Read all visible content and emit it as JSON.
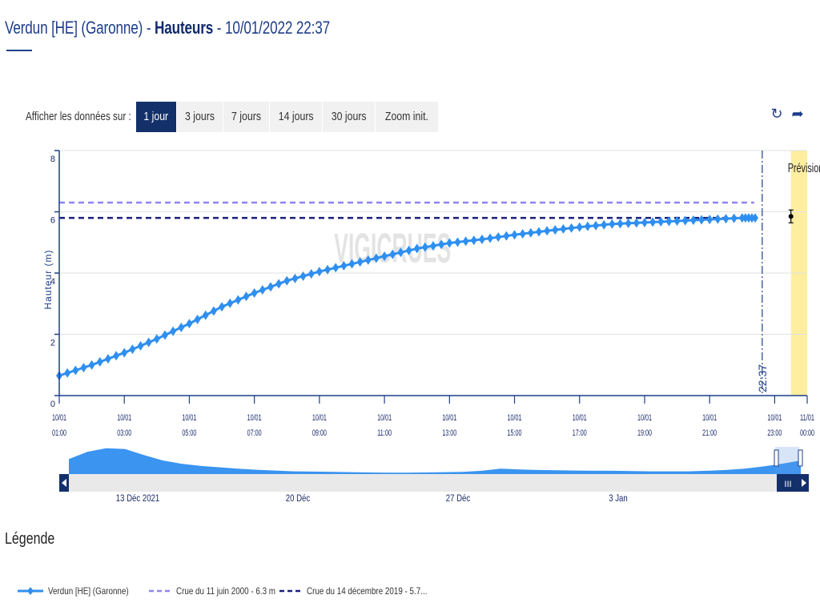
{
  "header": {
    "station": "Verdun [HE] (Garonne)",
    "sep1": " - ",
    "measure": "Hauteurs",
    "sep2": " - ",
    "datetime": "10/01/2022 22:37"
  },
  "toolbar": {
    "label": "Afficher les données sur :",
    "buttons": [
      "1 jour",
      "3 jours",
      "7 jours",
      "14 jours",
      "30 jours",
      "Zoom init."
    ],
    "active_index": 0,
    "icons": [
      "refresh-icon",
      "share-icon"
    ]
  },
  "chart_data": {
    "type": "line",
    "ylabel": "Hauteur (m)",
    "ylim": [
      0,
      8
    ],
    "y_ticks": [
      "0",
      "2",
      "4",
      "6",
      "8"
    ],
    "x_ticks": [
      {
        "date": "10/01",
        "time": "01:00"
      },
      {
        "date": "10/01",
        "time": "03:00"
      },
      {
        "date": "10/01",
        "time": "05:00"
      },
      {
        "date": "10/01",
        "time": "07:00"
      },
      {
        "date": "10/01",
        "time": "09:00"
      },
      {
        "date": "10/01",
        "time": "11:00"
      },
      {
        "date": "10/01",
        "time": "13:00"
      },
      {
        "date": "10/01",
        "time": "15:00"
      },
      {
        "date": "10/01",
        "time": "17:00"
      },
      {
        "date": "10/01",
        "time": "19:00"
      },
      {
        "date": "10/01",
        "time": "21:00"
      },
      {
        "date": "10/01",
        "time": "23:00"
      },
      {
        "date": "11/01",
        "time": "00:00"
      }
    ],
    "xlim_hours": [
      1,
      24
    ],
    "series": [
      {
        "name": "Verdun [HE] (Garonne)",
        "color": "#2f8ff0",
        "x_hours": [
          1,
          2,
          3,
          4,
          5,
          6,
          7,
          8,
          9,
          10,
          11,
          12,
          13,
          14,
          15,
          16,
          17,
          18,
          19,
          20,
          21,
          22,
          22.4
        ],
        "values": [
          0.65,
          1.0,
          1.4,
          1.85,
          2.35,
          2.9,
          3.35,
          3.75,
          4.05,
          4.3,
          4.55,
          4.8,
          4.98,
          5.1,
          5.25,
          5.38,
          5.5,
          5.6,
          5.65,
          5.7,
          5.75,
          5.8,
          5.8
        ]
      }
    ],
    "reference_lines": [
      {
        "name": "Crue du 11 juin 2000 - 6.3 m",
        "value": 6.3,
        "color": "#8c86f0"
      },
      {
        "name": "Crue du 14 décembre 2019 - 5.7...",
        "value": 5.8,
        "color": "#1a1f7a"
      }
    ],
    "now_marker": {
      "label": "22:37",
      "x_hours": 22.617
    },
    "forecast": {
      "label": "Prévisions",
      "from_hours": 23.5,
      "to_hours": 24,
      "point_hours": 23.5,
      "point_value": 5.85,
      "band_color": "#fdeea0"
    },
    "watermark": "VIGICRUES",
    "grid": true,
    "navigator": {
      "labels": [
        "13 Déc 2021",
        "20 Déc",
        "27 Déc",
        "3 Jan"
      ],
      "area_color": "#3a94f0",
      "profile": [
        0.55,
        0.82,
        0.95,
        0.92,
        0.7,
        0.5,
        0.38,
        0.3,
        0.25,
        0.2,
        0.16,
        0.13,
        0.1,
        0.09,
        0.08,
        0.07,
        0.06,
        0.05,
        0.05,
        0.06,
        0.07,
        0.08,
        0.12,
        0.2,
        0.17,
        0.15,
        0.14,
        0.13,
        0.12,
        0.12,
        0.11,
        0.1,
        0.1,
        0.1,
        0.12,
        0.15,
        0.2,
        0.28,
        0.38,
        0.5
      ]
    }
  },
  "legend": {
    "title": "Légende",
    "items": [
      {
        "label": "Verdun [HE] (Garonne)",
        "color": "#2f8ff0",
        "style": "solid-marker"
      },
      {
        "label": "Crue du 11 juin 2000 - 6.3 m",
        "color": "#8c86f0",
        "style": "dashed"
      },
      {
        "label": "Crue du 14 décembre 2019 - 5.7...",
        "color": "#1a1f7a",
        "style": "dashed"
      }
    ]
  }
}
